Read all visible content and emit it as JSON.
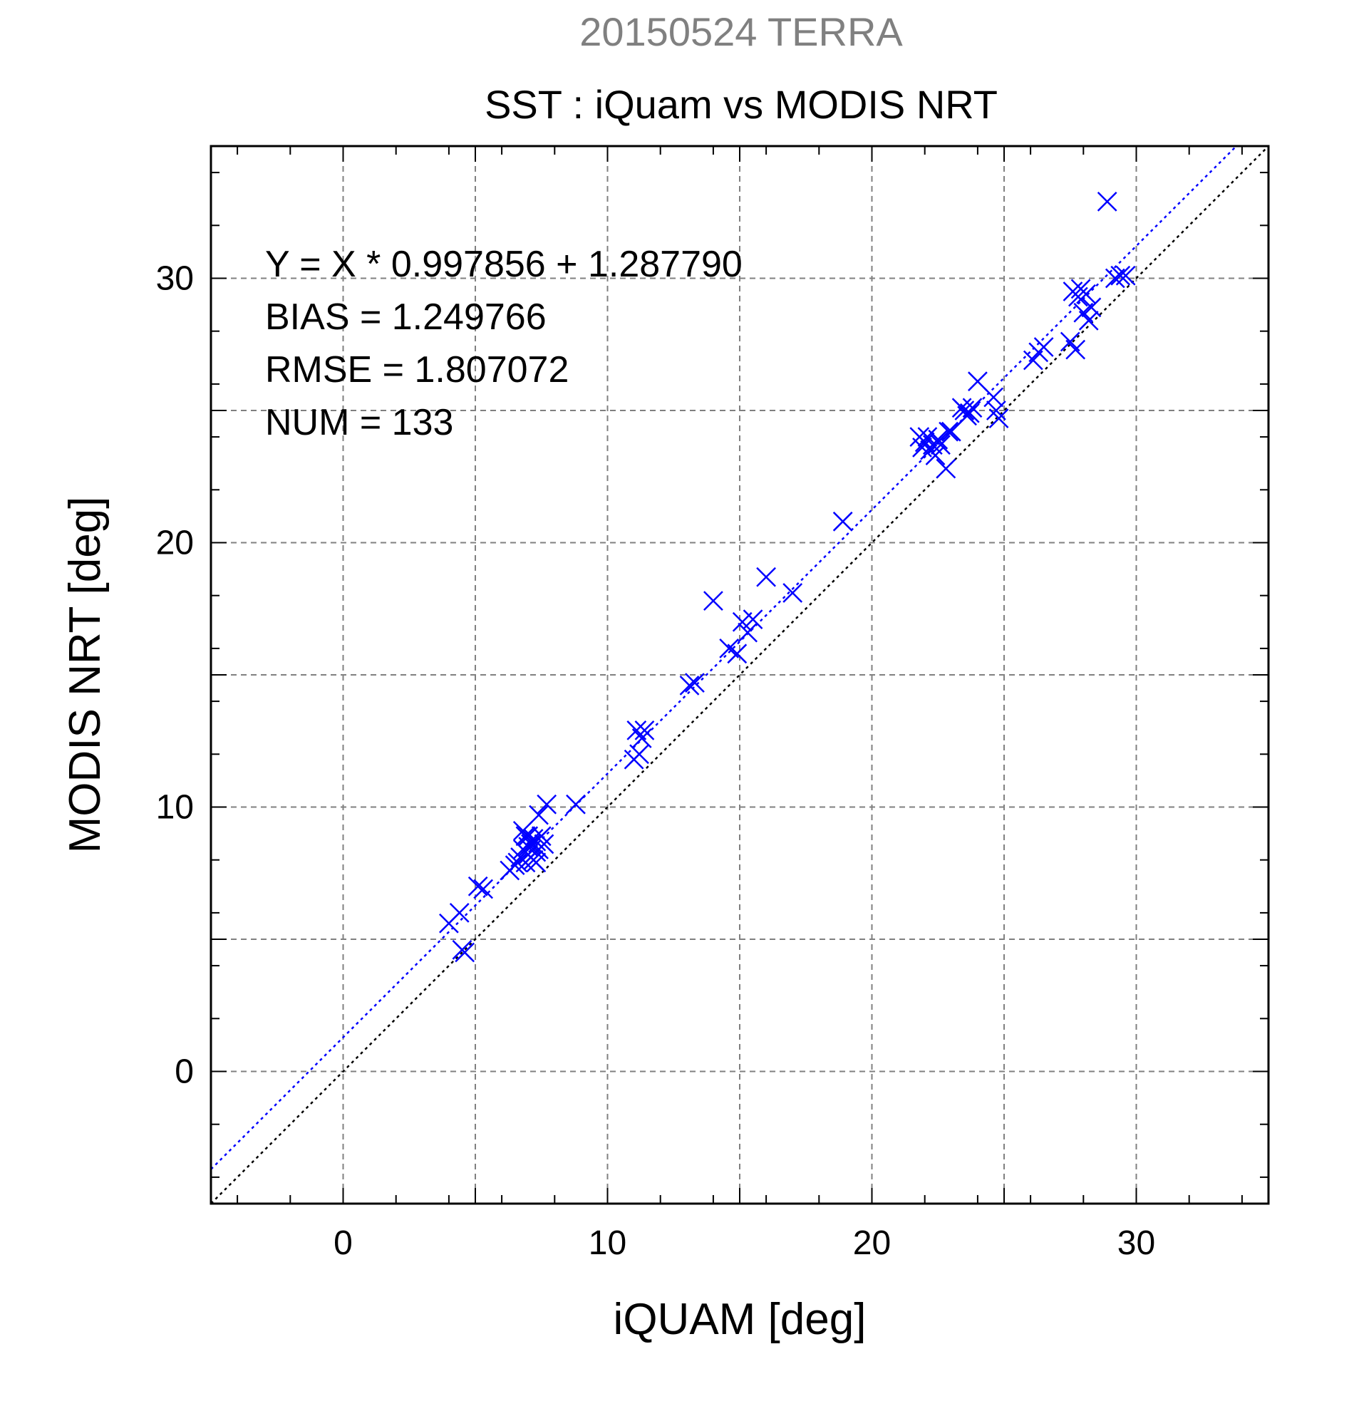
{
  "chart_data": {
    "type": "scatter",
    "title": "20150524 TERRA",
    "subtitle": "SST : iQuam vs MODIS NRT",
    "xlabel": "iQUAM [deg]",
    "ylabel": "MODIS NRT [deg]",
    "xlim": [
      -5,
      35
    ],
    "ylim": [
      -5,
      35
    ],
    "xticks": [
      0,
      10,
      20,
      30
    ],
    "yticks": [
      0,
      10,
      20,
      30
    ],
    "grid": true,
    "annotations": [
      "Y = X * 0.997856 + 1.287790",
      "BIAS = 1.249766",
      "RMSE = 1.807072",
      "NUM = 133"
    ],
    "lines": [
      {
        "style": "dotted",
        "color": "#0000ff",
        "slope": 0.997856,
        "intercept": 1.28779
      },
      {
        "style": "dotted",
        "color": "#000000",
        "slope": 1,
        "intercept": 0
      }
    ],
    "series": [
      {
        "color": "#0000ff",
        "marker": "x",
        "x": [
          4.0,
          4.4,
          4.5,
          4.6,
          5.1,
          5.3,
          6.3,
          6.5,
          6.6,
          6.7,
          6.8,
          6.8,
          6.9,
          6.9,
          7.0,
          7.0,
          7.0,
          7.1,
          7.1,
          7.2,
          7.2,
          7.3,
          7.3,
          7.3,
          7.4,
          7.4,
          7.5,
          7.6,
          7.7,
          8.8,
          11.0,
          11.1,
          11.2,
          11.3,
          11.4,
          13.1,
          13.3,
          14.0,
          14.6,
          14.9,
          15.1,
          15.3,
          15.5,
          16.0,
          17.0,
          18.9,
          21.8,
          21.9,
          22.0,
          22.1,
          22.2,
          22.3,
          22.4,
          22.5,
          22.6,
          22.8,
          22.9,
          23.0,
          23.4,
          23.5,
          23.6,
          23.7,
          23.8,
          24.0,
          24.6,
          24.7,
          24.8,
          26.1,
          26.3,
          26.5,
          27.5,
          27.6,
          27.7,
          27.8,
          27.9,
          28.0,
          28.1,
          28.2,
          28.3,
          28.9,
          29.2,
          29.4,
          29.6
        ],
        "y": [
          5.6,
          6.0,
          4.6,
          4.5,
          7.0,
          6.9,
          7.6,
          7.8,
          7.9,
          8.1,
          8.4,
          9.1,
          8.9,
          7.9,
          8.2,
          8.5,
          8.9,
          8.1,
          8.6,
          8.0,
          8.8,
          7.9,
          8.3,
          8.7,
          8.4,
          9.7,
          8.9,
          8.6,
          10.1,
          10.1,
          11.8,
          12.9,
          12.0,
          12.6,
          12.9,
          14.6,
          14.7,
          17.8,
          16.0,
          15.8,
          17.0,
          16.6,
          17.1,
          18.7,
          18.1,
          20.8,
          24.0,
          23.6,
          23.8,
          24.0,
          23.5,
          23.7,
          23.3,
          23.9,
          23.7,
          22.8,
          24.2,
          24.2,
          25.1,
          25.0,
          24.8,
          24.9,
          25.1,
          26.1,
          25.5,
          25.0,
          24.7,
          26.9,
          27.2,
          27.4,
          27.6,
          29.5,
          27.3,
          29.3,
          29.6,
          28.7,
          29.4,
          28.4,
          28.9,
          32.9,
          30.0,
          30.1,
          30.1
        ]
      }
    ]
  }
}
